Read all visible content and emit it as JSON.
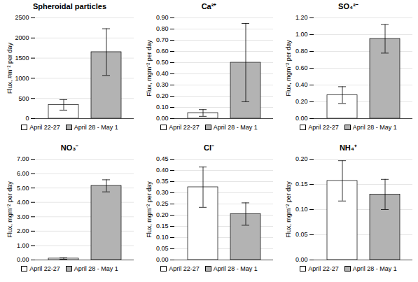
{
  "chart_data": [
    {
      "type": "bar",
      "title": "Spheroidal particles",
      "ylabel": "Flux, #m⁻² per day",
      "categories": [
        null
      ],
      "series": [
        {
          "name": "April 22-27",
          "color": "white",
          "values": [
            340
          ],
          "errors": [
            130
          ]
        },
        {
          "name": "April 28 - May 1",
          "color": "#b3b3b3",
          "values": [
            1650
          ],
          "errors": [
            580
          ]
        }
      ],
      "ylim": [
        0,
        2500
      ],
      "yticks": [
        0,
        500,
        1000,
        1500,
        2000,
        2500
      ],
      "grid": true,
      "legend": "bottom",
      "tick_labels": "y"
    },
    {
      "type": "bar",
      "title": "Ca²⁺",
      "ylabel": "Flux, mgm⁻² per day",
      "categories": [
        null
      ],
      "series": [
        {
          "name": "April 22-27",
          "color": "white",
          "values": [
            0.05
          ],
          "errors": [
            0.03
          ]
        },
        {
          "name": "April 28 - May 1",
          "color": "#b3b3b3",
          "values": [
            0.5
          ],
          "errors": [
            0.35
          ]
        }
      ],
      "ylim": [
        0,
        0.9
      ],
      "yticks": [
        {
          "value": 0,
          "label": "0.00"
        },
        {
          "value": 0.1,
          "label": "0.10"
        },
        {
          "value": 0.2,
          "label": "0.20"
        },
        {
          "value": 0.3,
          "label": "0.30"
        },
        {
          "value": 0.4,
          "label": "0.40"
        },
        {
          "value": 0.5,
          "label": "0.50"
        },
        {
          "value": 0.6,
          "label": "0.60"
        },
        {
          "value": 0.7,
          "label": "0.70"
        },
        {
          "value": 0.8,
          "label": "0.80"
        },
        {
          "value": 0.9,
          "label": "0.90"
        }
      ],
      "grid": true,
      "legend": "bottom",
      "tick_labels": "y"
    },
    {
      "type": "bar",
      "title": "SO₄²⁻",
      "ylabel": "Flux, mgm⁻² per day",
      "categories": [
        null
      ],
      "series": [
        {
          "name": "April 22-27",
          "color": "white",
          "values": [
            0.28
          ],
          "errors": [
            0.1
          ]
        },
        {
          "name": "April 28 - May 1",
          "color": "#b3b3b3",
          "values": [
            0.95
          ],
          "errors": [
            0.17
          ]
        }
      ],
      "ylim": [
        0,
        1.2
      ],
      "yticks": [
        {
          "value": 0,
          "label": "0.00"
        },
        {
          "value": 0.2,
          "label": "0.20"
        },
        {
          "value": 0.4,
          "label": "0.40"
        },
        {
          "value": 0.6,
          "label": "0.60"
        },
        {
          "value": 0.8,
          "label": "0.80"
        },
        {
          "value": 1,
          "label": "1.00"
        },
        {
          "value": 1.2,
          "label": "1.20"
        }
      ],
      "grid": true,
      "legend": "bottom",
      "tick_labels": "y"
    },
    {
      "type": "bar",
      "title": "NO₃⁻",
      "ylabel": "Flux, mgm⁻² per day",
      "categories": [
        null
      ],
      "series": [
        {
          "name": "April 22-27",
          "color": "white",
          "values": [
            0.1
          ],
          "errors": [
            0.05
          ]
        },
        {
          "name": "April 28 - May 1",
          "color": "#b3b3b3",
          "values": [
            5.15
          ],
          "errors": [
            0.42
          ]
        }
      ],
      "ylim": [
        0,
        7.0
      ],
      "yticks": [
        {
          "value": 0,
          "label": "0.00"
        },
        {
          "value": 1,
          "label": "1.00"
        },
        {
          "value": 2,
          "label": "2.00"
        },
        {
          "value": 3,
          "label": "3.00"
        },
        {
          "value": 4,
          "label": "4.00"
        },
        {
          "value": 5,
          "label": "5.00"
        },
        {
          "value": 6,
          "label": "6.00"
        },
        {
          "value": 7,
          "label": "7.00"
        }
      ],
      "grid": true,
      "legend": "bottom",
      "tick_labels": "y"
    },
    {
      "type": "bar",
      "title": "Cl⁻",
      "ylabel": "Flux, mgm⁻² per day",
      "categories": [
        null
      ],
      "series": [
        {
          "name": "April 22-27",
          "color": "white",
          "values": [
            0.325
          ],
          "errors": [
            0.09
          ]
        },
        {
          "name": "April 28 - May 1",
          "color": "#b3b3b3",
          "values": [
            0.205
          ],
          "errors": [
            0.05
          ]
        }
      ],
      "ylim": [
        0,
        0.45
      ],
      "yticks": [
        {
          "value": 0,
          "label": "0.00"
        },
        {
          "value": 0.05,
          "label": "0.05"
        },
        {
          "value": 0.1,
          "label": "0.10"
        },
        {
          "value": 0.15,
          "label": "0.15"
        },
        {
          "value": 0.2,
          "label": "0.20"
        },
        {
          "value": 0.25,
          "label": "0.25"
        },
        {
          "value": 0.3,
          "label": "0.30"
        },
        {
          "value": 0.35,
          "label": "0.35"
        },
        {
          "value": 0.4,
          "label": "0.40"
        },
        {
          "value": 0.45,
          "label": "0.45"
        }
      ],
      "grid": true,
      "legend": "bottom",
      "tick_labels": "y"
    },
    {
      "type": "bar",
      "title": "NH₄⁺",
      "ylabel": "Flux, mgm⁻² per day",
      "categories": [
        null
      ],
      "series": [
        {
          "name": "April 22-27",
          "color": "white",
          "values": [
            0.157
          ],
          "errors": [
            0.04
          ]
        },
        {
          "name": "April 28 - May 1",
          "color": "#b3b3b3",
          "values": [
            0.13
          ],
          "errors": [
            0.03
          ]
        }
      ],
      "ylim": [
        0,
        0.2
      ],
      "yticks": [
        {
          "value": 0,
          "label": "0.00"
        },
        {
          "value": 0.05,
          "label": "0.05"
        },
        {
          "value": 0.1,
          "label": "0.10"
        },
        {
          "value": 0.15,
          "label": "0.15"
        },
        {
          "value": 0.2,
          "label": "0.20"
        }
      ],
      "grid": true,
      "legend": "bottom",
      "tick_labels": "y"
    }
  ]
}
